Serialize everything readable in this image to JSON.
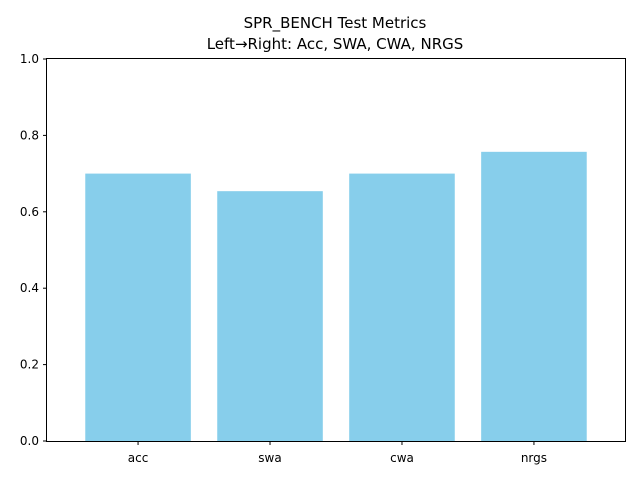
{
  "chart_data": {
    "type": "bar",
    "title_line1": "SPR_BENCH Test Metrics",
    "title_line2": "Left→Right: Acc, SWA, CWA, NRGS",
    "categories": [
      "acc",
      "swa",
      "cwa",
      "nrgs"
    ],
    "values": [
      0.7,
      0.654,
      0.7,
      0.757
    ],
    "ylim": [
      0,
      1.0
    ],
    "yticks": [
      0.0,
      0.2,
      0.4,
      0.6,
      0.8,
      1.0
    ],
    "ytick_labels": [
      "0.0",
      "0.2",
      "0.4",
      "0.6",
      "0.8",
      "1.0"
    ],
    "bar_color": "#87ceeb",
    "grid": false
  }
}
